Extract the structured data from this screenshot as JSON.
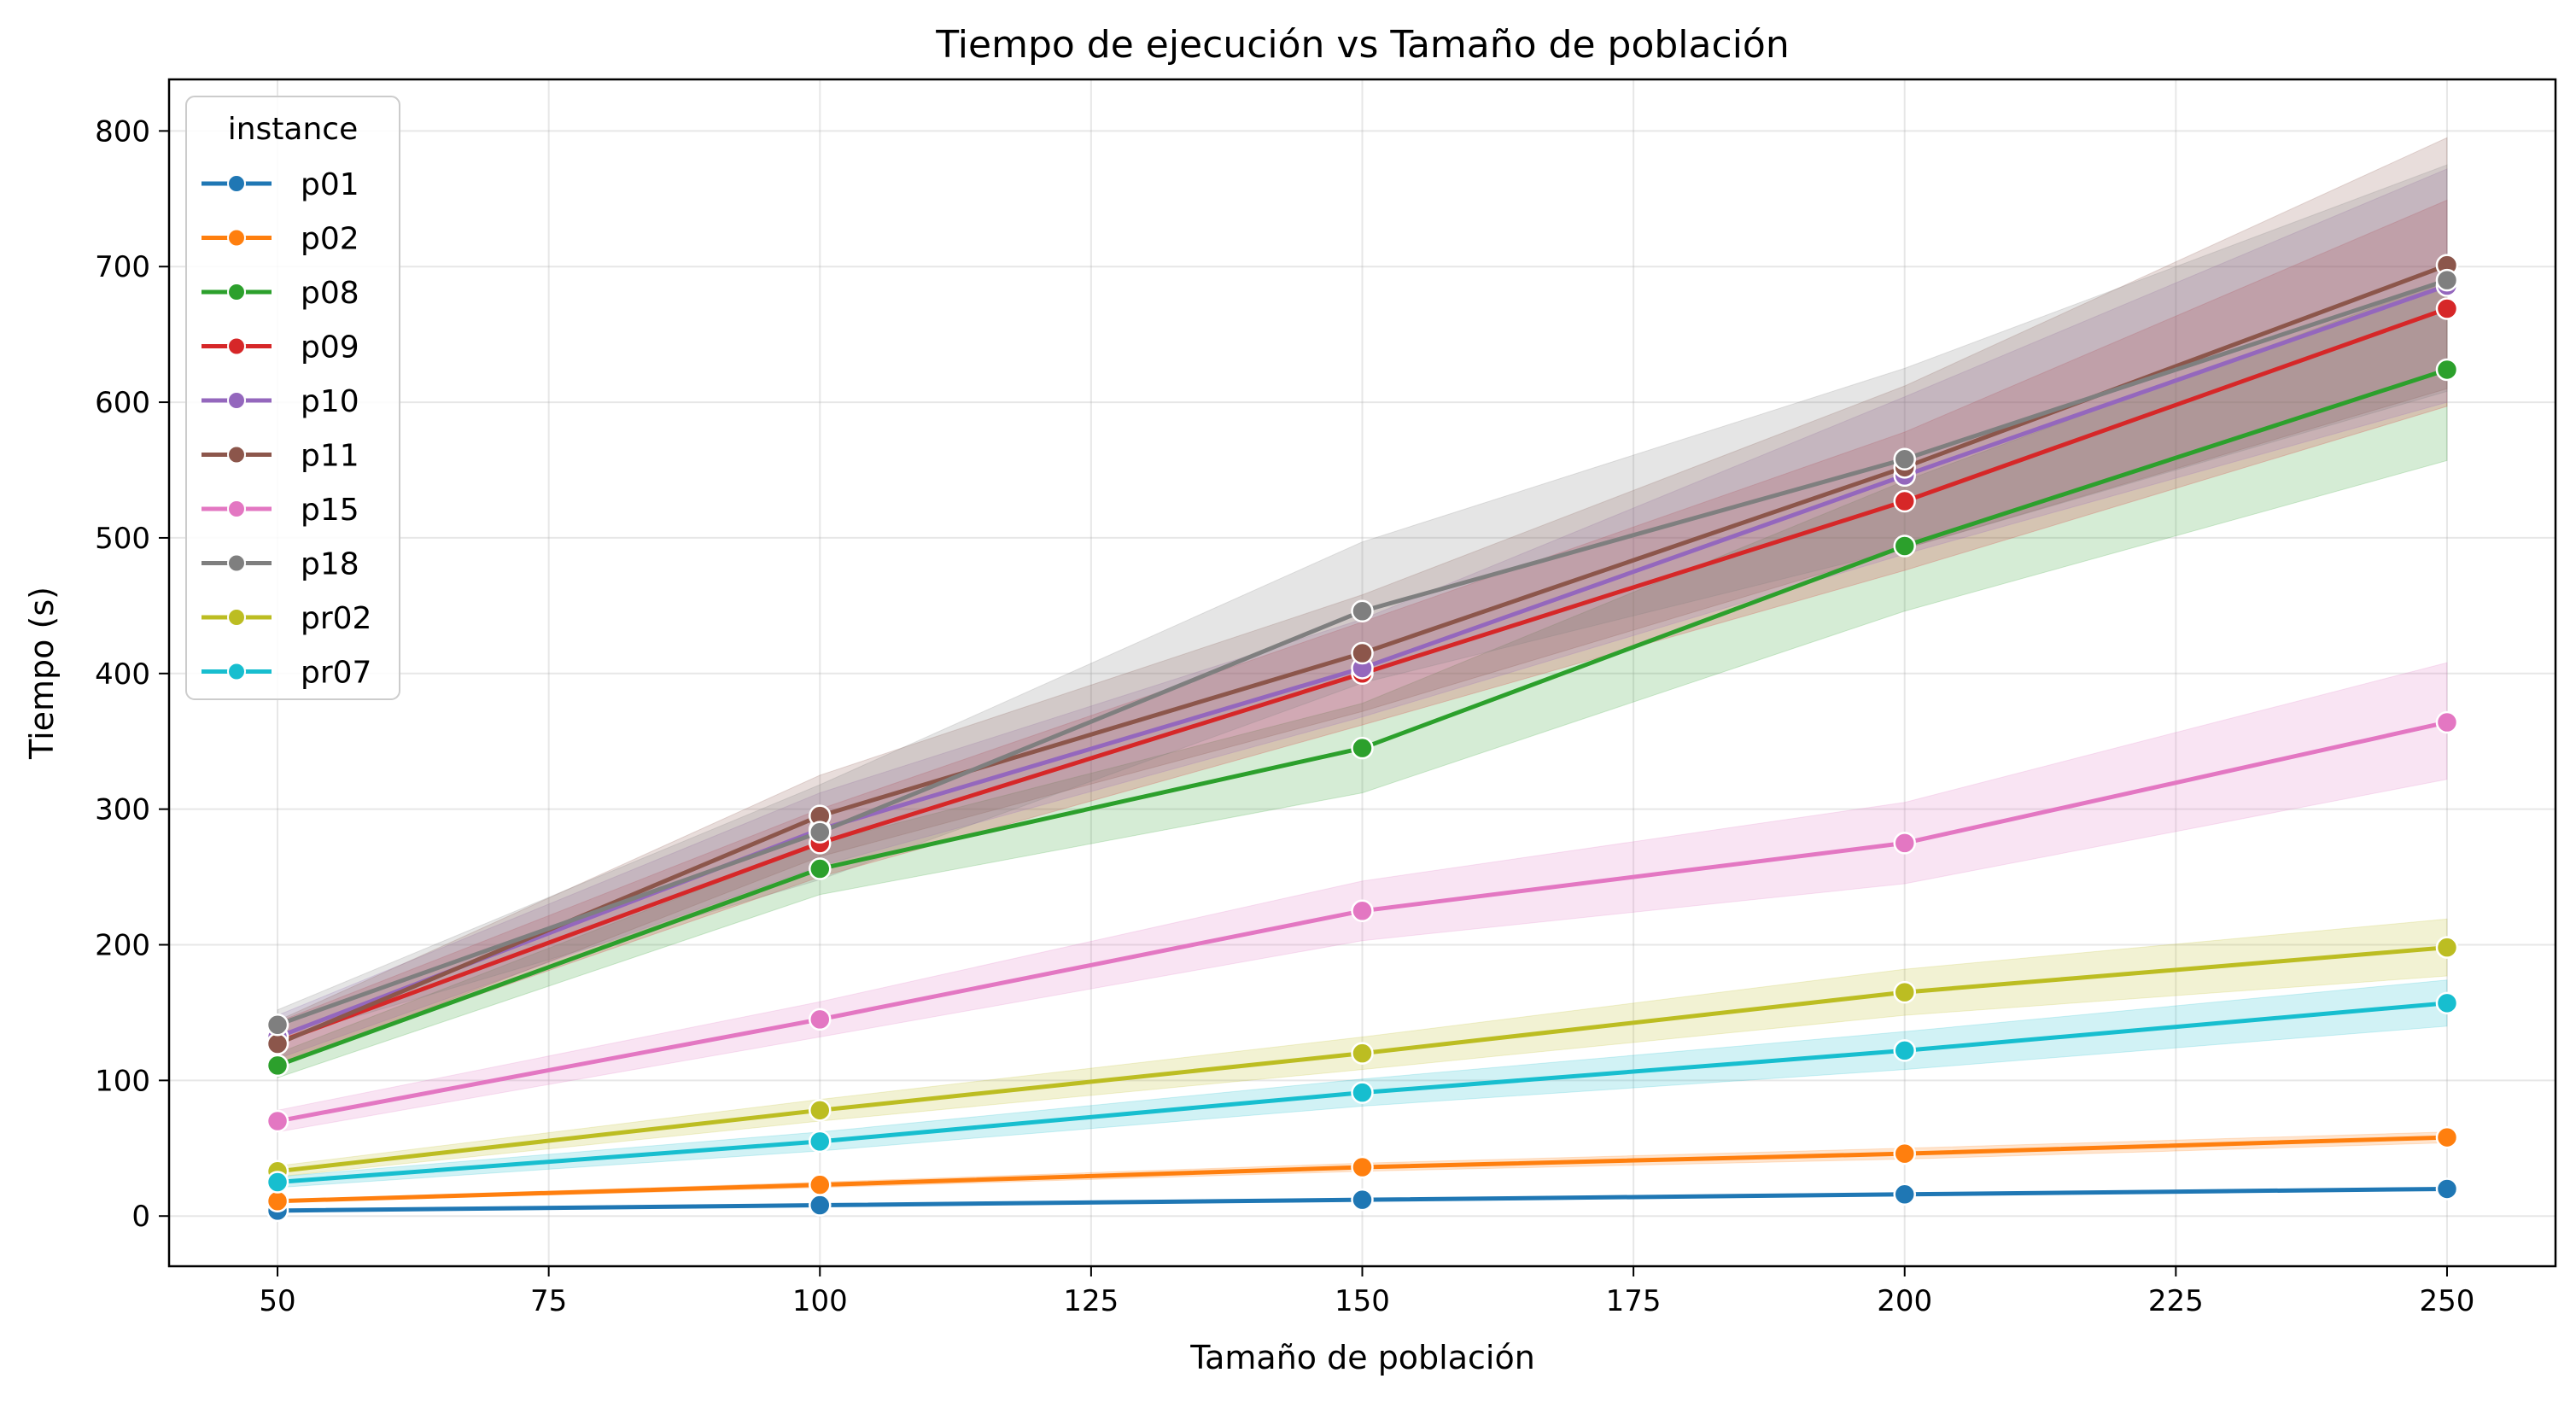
{
  "chart_data": {
    "type": "line",
    "title": "Tiempo de ejecución vs Tamaño de población",
    "xlabel": "Tamaño de población",
    "ylabel": "Tiempo (s)",
    "xlim": [
      40,
      260
    ],
    "ylim": [
      -37,
      838
    ],
    "x_ticks": [
      50,
      75,
      100,
      125,
      150,
      175,
      200,
      225,
      250
    ],
    "y_ticks": [
      0,
      100,
      200,
      300,
      400,
      500,
      600,
      700,
      800
    ],
    "grid": true,
    "legend": {
      "title": "instance",
      "placement": "top-left"
    },
    "x": [
      50,
      100,
      150,
      200,
      250
    ],
    "series": [
      {
        "name": "p01",
        "color": "#1f77b4",
        "values": [
          4,
          8,
          12,
          16,
          20
        ],
        "lower": [
          3.5,
          7,
          11,
          15,
          19
        ],
        "upper": [
          4.5,
          9,
          13,
          17,
          21
        ]
      },
      {
        "name": "p02",
        "color": "#ff7f0e",
        "values": [
          11,
          23,
          36,
          46,
          58
        ],
        "lower": [
          10,
          21,
          33,
          42,
          54
        ],
        "upper": [
          12,
          25,
          39,
          50,
          62
        ]
      },
      {
        "name": "p08",
        "color": "#2ca02c",
        "values": [
          111,
          256,
          345,
          494,
          624
        ],
        "lower": [
          102,
          237,
          312,
          446,
          557
        ],
        "upper": [
          120,
          275,
          378,
          542,
          690
        ]
      },
      {
        "name": "p09",
        "color": "#d62728",
        "values": [
          128,
          275,
          400,
          527,
          669
        ],
        "lower": [
          112,
          250,
          362,
          476,
          597
        ],
        "upper": [
          143,
          300,
          438,
          578,
          749
        ]
      },
      {
        "name": "p10",
        "color": "#9467bd",
        "values": [
          132,
          285,
          404,
          546,
          686
        ],
        "lower": [
          116,
          258,
          368,
          488,
          600
        ],
        "upper": [
          148,
          312,
          440,
          604,
          772
        ]
      },
      {
        "name": "p11",
        "color": "#8c564b",
        "values": [
          127,
          295,
          415,
          552,
          701
        ],
        "lower": [
          110,
          265,
          372,
          492,
          610
        ],
        "upper": [
          144,
          325,
          458,
          612,
          795
        ]
      },
      {
        "name": "p15",
        "color": "#e377c2",
        "values": [
          70,
          145,
          225,
          275,
          364
        ],
        "lower": [
          62,
          132,
          203,
          245,
          322
        ],
        "upper": [
          78,
          158,
          247,
          305,
          408
        ]
      },
      {
        "name": "p18",
        "color": "#7f7f7f",
        "values": [
          141,
          283,
          446,
          558,
          690
        ],
        "lower": [
          130,
          248,
          393,
          492,
          608
        ],
        "upper": [
          152,
          318,
          497,
          625,
          775
        ]
      },
      {
        "name": "pr02",
        "color": "#bcbd22",
        "values": [
          33,
          78,
          120,
          165,
          198
        ],
        "lower": [
          29,
          70,
          108,
          148,
          177
        ],
        "upper": [
          37,
          86,
          132,
          182,
          219
        ]
      },
      {
        "name": "pr07",
        "color": "#17becf",
        "values": [
          25,
          55,
          91,
          122,
          157
        ],
        "lower": [
          21,
          48,
          81,
          108,
          140
        ],
        "upper": [
          29,
          62,
          101,
          136,
          174
        ]
      }
    ]
  }
}
